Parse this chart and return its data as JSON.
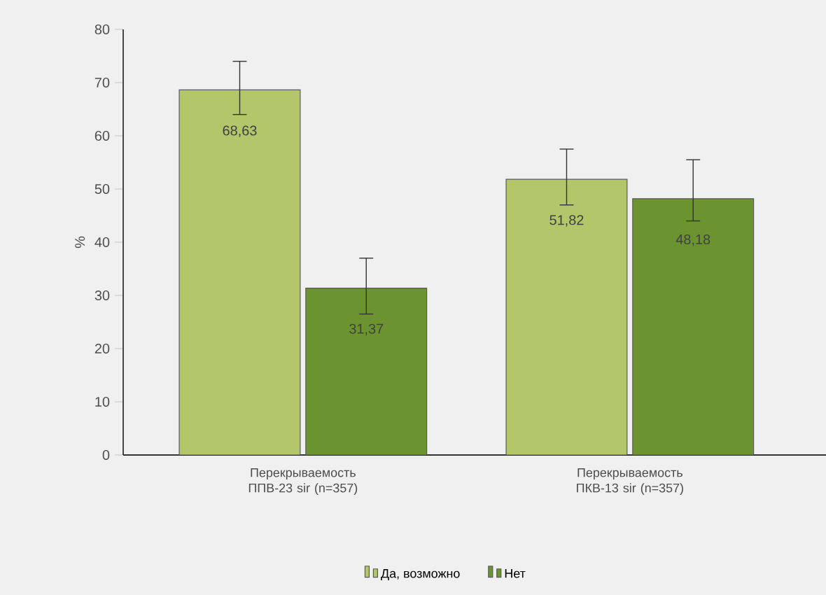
{
  "chart_data": {
    "type": "bar",
    "ylabel": "%",
    "categories": [
      "Перекрываемость ППВ-23 sir (n=357)",
      "Перекрываемость ПКВ-13 sir (n=357)"
    ],
    "series": [
      {
        "name": "Да, возможно",
        "color": "#b3c66a",
        "values": [
          68.63,
          51.82
        ],
        "errors": [
          [
            64,
            74
          ],
          [
            47,
            57.5
          ]
        ],
        "value_labels": [
          "68,63",
          "51,82"
        ]
      },
      {
        "name": "Нет",
        "color": "#6b9430",
        "values": [
          31.37,
          48.18
        ],
        "errors": [
          [
            26.5,
            37
          ],
          [
            44,
            55.5
          ]
        ],
        "value_labels": [
          "31,37",
          "48,18"
        ]
      }
    ],
    "ylim": [
      0,
      80
    ],
    "yticks": [
      0,
      10,
      20,
      30,
      40,
      50,
      60,
      70,
      80
    ],
    "legend": "bottom",
    "grid": false
  }
}
